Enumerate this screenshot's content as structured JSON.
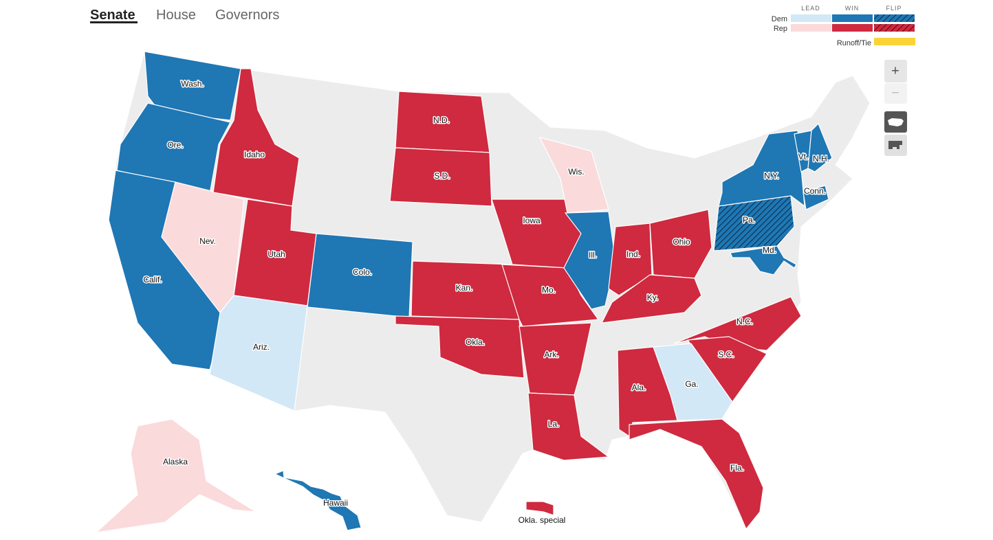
{
  "tabs": [
    "Senate",
    "House",
    "Governors"
  ],
  "active_tab": "Senate",
  "legend": {
    "columns": [
      "LEAD",
      "WIN",
      "FLIP"
    ],
    "rows": [
      {
        "name": "Dem",
        "colors": [
          "#d3e8f6",
          "#1f77b4",
          "#1f77b4"
        ]
      },
      {
        "name": "Rep",
        "colors": [
          "#fbdadb",
          "#cf2a3f",
          "#cf2a3f"
        ]
      }
    ],
    "runoff": {
      "label": "Runoff/Tie",
      "color": "#fbd336"
    }
  },
  "zoom": [
    "+",
    "−"
  ],
  "no_race_color": "#ececec",
  "states": [
    {
      "label": "Wash.",
      "party": "Dem",
      "result": "WIN"
    },
    {
      "label": "Ore.",
      "party": "Dem",
      "result": "WIN"
    },
    {
      "label": "Calif.",
      "party": "Dem",
      "result": "WIN"
    },
    {
      "label": "Nev.",
      "party": "Rep",
      "result": "LEAD"
    },
    {
      "label": "Idaho",
      "party": "Rep",
      "result": "WIN"
    },
    {
      "label": "Utah",
      "party": "Rep",
      "result": "WIN"
    },
    {
      "label": "Ariz.",
      "party": "Dem",
      "result": "LEAD"
    },
    {
      "label": "Colo.",
      "party": "Dem",
      "result": "WIN"
    },
    {
      "label": "N.D.",
      "party": "Rep",
      "result": "WIN"
    },
    {
      "label": "S.D.",
      "party": "Rep",
      "result": "WIN"
    },
    {
      "label": "Kan.",
      "party": "Rep",
      "result": "WIN"
    },
    {
      "label": "Okla.",
      "party": "Rep",
      "result": "WIN"
    },
    {
      "label": "Iowa",
      "party": "Rep",
      "result": "WIN"
    },
    {
      "label": "Mo.",
      "party": "Rep",
      "result": "WIN"
    },
    {
      "label": "Ark.",
      "party": "Rep",
      "result": "WIN"
    },
    {
      "label": "La.",
      "party": "Rep",
      "result": "WIN"
    },
    {
      "label": "Ill.",
      "party": "Dem",
      "result": "WIN"
    },
    {
      "label": "Ind.",
      "party": "Rep",
      "result": "WIN"
    },
    {
      "label": "Ohio",
      "party": "Rep",
      "result": "WIN"
    },
    {
      "label": "Ky.",
      "party": "Rep",
      "result": "WIN"
    },
    {
      "label": "Wis.",
      "party": "Rep",
      "result": "LEAD"
    },
    {
      "label": "N.C.",
      "party": "Rep",
      "result": "WIN"
    },
    {
      "label": "S.C.",
      "party": "Rep",
      "result": "WIN"
    },
    {
      "label": "Ga.",
      "party": "Dem",
      "result": "LEAD"
    },
    {
      "label": "Ala.",
      "party": "Rep",
      "result": "WIN"
    },
    {
      "label": "Fla.",
      "party": "Rep",
      "result": "WIN"
    },
    {
      "label": "Pa.",
      "party": "Dem",
      "result": "FLIP"
    },
    {
      "label": "N.Y.",
      "party": "Dem",
      "result": "WIN"
    },
    {
      "label": "Vt.",
      "party": "Dem",
      "result": "WIN"
    },
    {
      "label": "N.H.",
      "party": "Dem",
      "result": "WIN"
    },
    {
      "label": "Conn.",
      "party": "Dem",
      "result": "WIN"
    },
    {
      "label": "Md.",
      "party": "Dem",
      "result": "WIN"
    },
    {
      "label": "Alaska",
      "party": "Rep",
      "result": "LEAD"
    },
    {
      "label": "Hawaii",
      "party": "Dem",
      "result": "WIN"
    },
    {
      "label": "Okla. special",
      "party": "Rep",
      "result": "WIN"
    }
  ]
}
